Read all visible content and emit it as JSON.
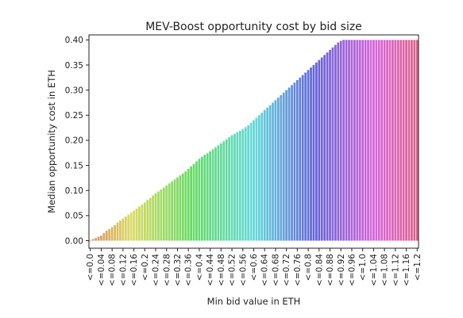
{
  "chart_data": {
    "type": "bar",
    "title": "MEV-Boost opportunity cost by bid size",
    "xlabel": "Min bid value in ETH",
    "ylabel": "Median opportunity cost in ETH",
    "ylim": [
      -0.015,
      0.41
    ],
    "yticks": [
      0.0,
      0.05,
      0.1,
      0.15,
      0.2,
      0.25,
      0.3,
      0.35,
      0.4
    ],
    "ytick_labels": [
      "0.00",
      "0.05",
      "0.10",
      "0.15",
      "0.20",
      "0.25",
      "0.30",
      "0.35",
      "0.40"
    ],
    "categories": [
      "<=0.0",
      "<=0.01",
      "<=0.02",
      "<=0.03",
      "<=0.04",
      "<=0.05",
      "<=0.06",
      "<=0.07",
      "<=0.08",
      "<=0.09",
      "<=0.1",
      "<=0.11",
      "<=0.12",
      "<=0.13",
      "<=0.14",
      "<=0.15",
      "<=0.16",
      "<=0.17",
      "<=0.18",
      "<=0.19",
      "<=0.2",
      "<=0.21",
      "<=0.22",
      "<=0.23",
      "<=0.24",
      "<=0.25",
      "<=0.26",
      "<=0.27",
      "<=0.28",
      "<=0.29",
      "<=0.3",
      "<=0.31",
      "<=0.32",
      "<=0.33",
      "<=0.34",
      "<=0.35",
      "<=0.36",
      "<=0.37",
      "<=0.38",
      "<=0.39",
      "<=0.4",
      "<=0.41",
      "<=0.42",
      "<=0.43",
      "<=0.44",
      "<=0.45",
      "<=0.46",
      "<=0.47",
      "<=0.48",
      "<=0.49",
      "<=0.5",
      "<=0.51",
      "<=0.52",
      "<=0.53",
      "<=0.54",
      "<=0.55",
      "<=0.56",
      "<=0.57",
      "<=0.58",
      "<=0.59",
      "<=0.6",
      "<=0.61",
      "<=0.62",
      "<=0.63",
      "<=0.64",
      "<=0.65",
      "<=0.66",
      "<=0.67",
      "<=0.68",
      "<=0.69",
      "<=0.7",
      "<=0.71",
      "<=0.72",
      "<=0.73",
      "<=0.74",
      "<=0.75",
      "<=0.76",
      "<=0.77",
      "<=0.78",
      "<=0.79",
      "<=0.8",
      "<=0.81",
      "<=0.82",
      "<=0.83",
      "<=0.84",
      "<=0.85",
      "<=0.86",
      "<=0.87",
      "<=0.88",
      "<=0.89",
      "<=0.9",
      "<=0.91",
      "<=0.92",
      "<=0.93",
      "<=0.94",
      "<=0.95",
      "<=0.96",
      "<=0.97",
      "<=0.98",
      "<=0.99",
      "<=1.0",
      "<=1.01",
      "<=1.02",
      "<=1.03",
      "<=1.04",
      "<=1.05",
      "<=1.06",
      "<=1.07",
      "<=1.08",
      "<=1.09",
      "<=1.1",
      "<=1.11",
      "<=1.12",
      "<=1.13",
      "<=1.14",
      "<=1.15",
      "<=1.16",
      "<=1.17",
      "<=1.18",
      "<=1.19",
      "<=1.2"
    ],
    "values": [
      0.0,
      0.003,
      0.005,
      0.008,
      0.01,
      0.015,
      0.02,
      0.023,
      0.027,
      0.031,
      0.036,
      0.04,
      0.044,
      0.048,
      0.052,
      0.056,
      0.06,
      0.064,
      0.068,
      0.072,
      0.076,
      0.081,
      0.085,
      0.09,
      0.094,
      0.098,
      0.102,
      0.106,
      0.11,
      0.114,
      0.118,
      0.122,
      0.126,
      0.13,
      0.134,
      0.138,
      0.143,
      0.148,
      0.153,
      0.158,
      0.163,
      0.167,
      0.171,
      0.174,
      0.178,
      0.182,
      0.186,
      0.19,
      0.194,
      0.198,
      0.202,
      0.206,
      0.21,
      0.213,
      0.216,
      0.219,
      0.222,
      0.226,
      0.23,
      0.235,
      0.24,
      0.245,
      0.25,
      0.255,
      0.26,
      0.265,
      0.27,
      0.275,
      0.28,
      0.285,
      0.29,
      0.295,
      0.3,
      0.305,
      0.31,
      0.315,
      0.32,
      0.325,
      0.33,
      0.335,
      0.34,
      0.345,
      0.35,
      0.355,
      0.36,
      0.365,
      0.37,
      0.375,
      0.38,
      0.385,
      0.39,
      0.395,
      0.398,
      0.4,
      0.4,
      0.4,
      0.4,
      0.4,
      0.4,
      0.4,
      0.4,
      0.4,
      0.4,
      0.4,
      0.4,
      0.4,
      0.4,
      0.4,
      0.4,
      0.4,
      0.4,
      0.4,
      0.4,
      0.4,
      0.4,
      0.4,
      0.4,
      0.4,
      0.4,
      0.4,
      0.4
    ],
    "xtick_labels": [
      "<=0.0",
      "<=0.04",
      "<=0.08",
      "<=0.12",
      "<=0.16",
      "<=0.2",
      "<=0.24",
      "<=0.28",
      "<=0.32",
      "<=0.36",
      "<=0.4",
      "<=0.44",
      "<=0.48",
      "<=0.52",
      "<=0.56",
      "<=0.6",
      "<=0.64",
      "<=0.68",
      "<=0.72",
      "<=0.76",
      "<=0.8",
      "<=0.84",
      "<=0.88",
      "<=0.92",
      "<=0.96",
      "<=1.0",
      "<=1.04",
      "<=1.08",
      "<=1.12",
      "<=1.16",
      "<=1.2"
    ],
    "grid": false,
    "legend": "none",
    "palette": "husl"
  }
}
